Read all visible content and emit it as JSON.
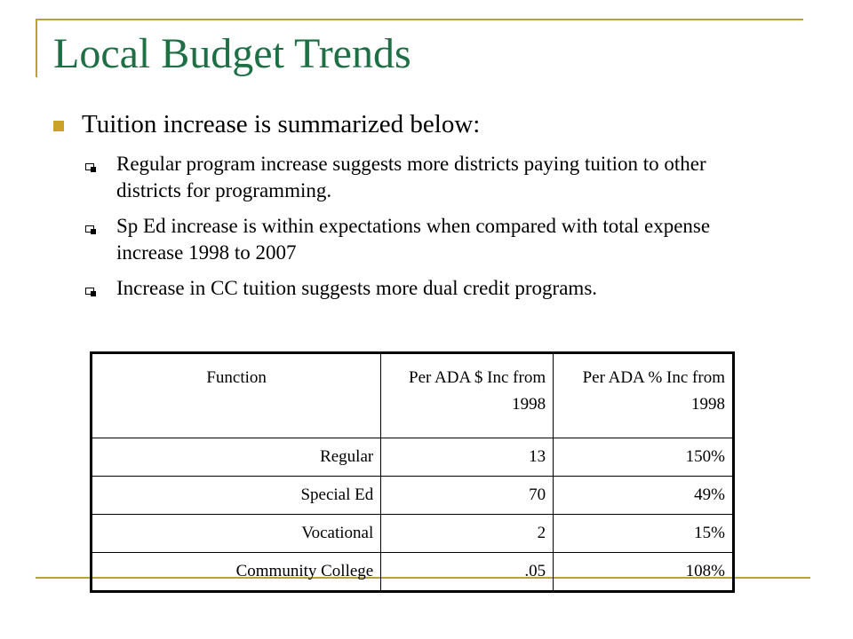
{
  "slide": {
    "title": "Local Budget Trends",
    "main_bullet": "Tuition increase is summarized below:",
    "sub_bullets": [
      "Regular program increase suggests more districts paying tuition to other districts for programming.",
      "Sp Ed increase is within expectations when compared with total expense increase 1998 to 2007",
      "Increase in CC tuition suggests more dual credit programs."
    ]
  },
  "table": {
    "headers": [
      "Function",
      "Per ADA $ Inc from 1998",
      "Per ADA % Inc from 1998"
    ],
    "rows": [
      [
        "Regular",
        "13",
        "150%"
      ],
      [
        "Special Ed",
        "70",
        "49%"
      ],
      [
        "Vocational",
        "2",
        "15%"
      ],
      [
        "Community College",
        ".05",
        "108%"
      ]
    ]
  },
  "colors": {
    "title": "#1f6f45",
    "accent": "#c9a227",
    "frame": "#b8a13a"
  }
}
